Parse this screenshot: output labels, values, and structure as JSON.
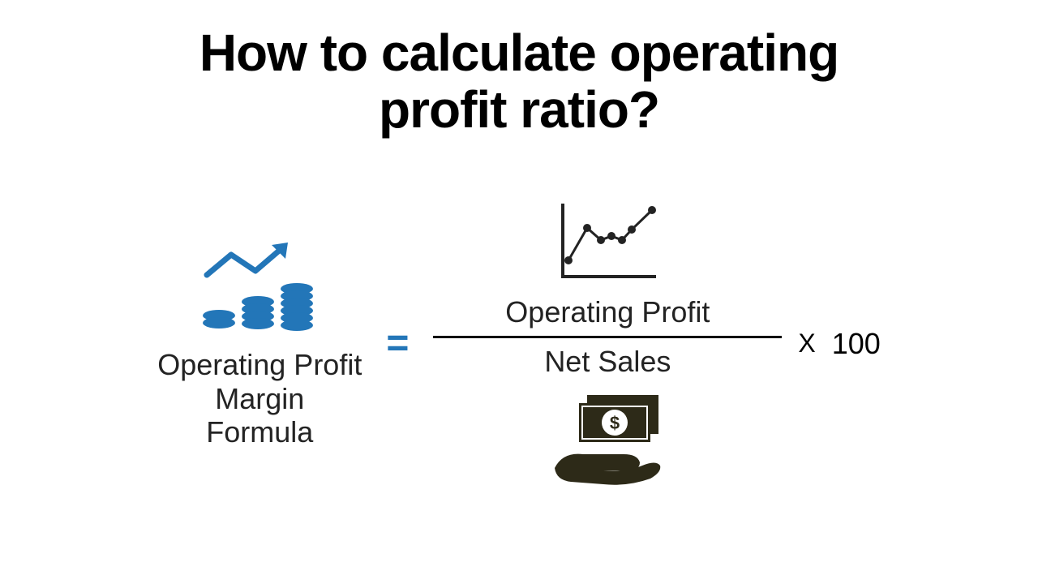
{
  "title": {
    "line1": "How to calculate operating",
    "line2": "profit ratio?",
    "fontsize": 64,
    "color": "#000000",
    "weight": 900
  },
  "formula": {
    "left_label_line1": "Operating Profit",
    "left_label_line2": "Margin",
    "left_label_line3": "Formula",
    "left_label_fontsize": 36,
    "left_label_color": "#232323",
    "equals": "=",
    "equals_color": "#2376b8",
    "equals_fontsize": 48,
    "numerator": "Operating Profit",
    "denominator": "Net Sales",
    "fraction_fontsize": 36,
    "fraction_color": "#232323",
    "fraction_line_width": 430,
    "times": "X",
    "hundred": "100",
    "times_fontsize": 32,
    "hundred_fontsize": 36
  },
  "icons": {
    "coins_color": "#2376b8",
    "chart_color": "#232323",
    "money_color": "#2d2a18"
  },
  "background_color": "#ffffff"
}
